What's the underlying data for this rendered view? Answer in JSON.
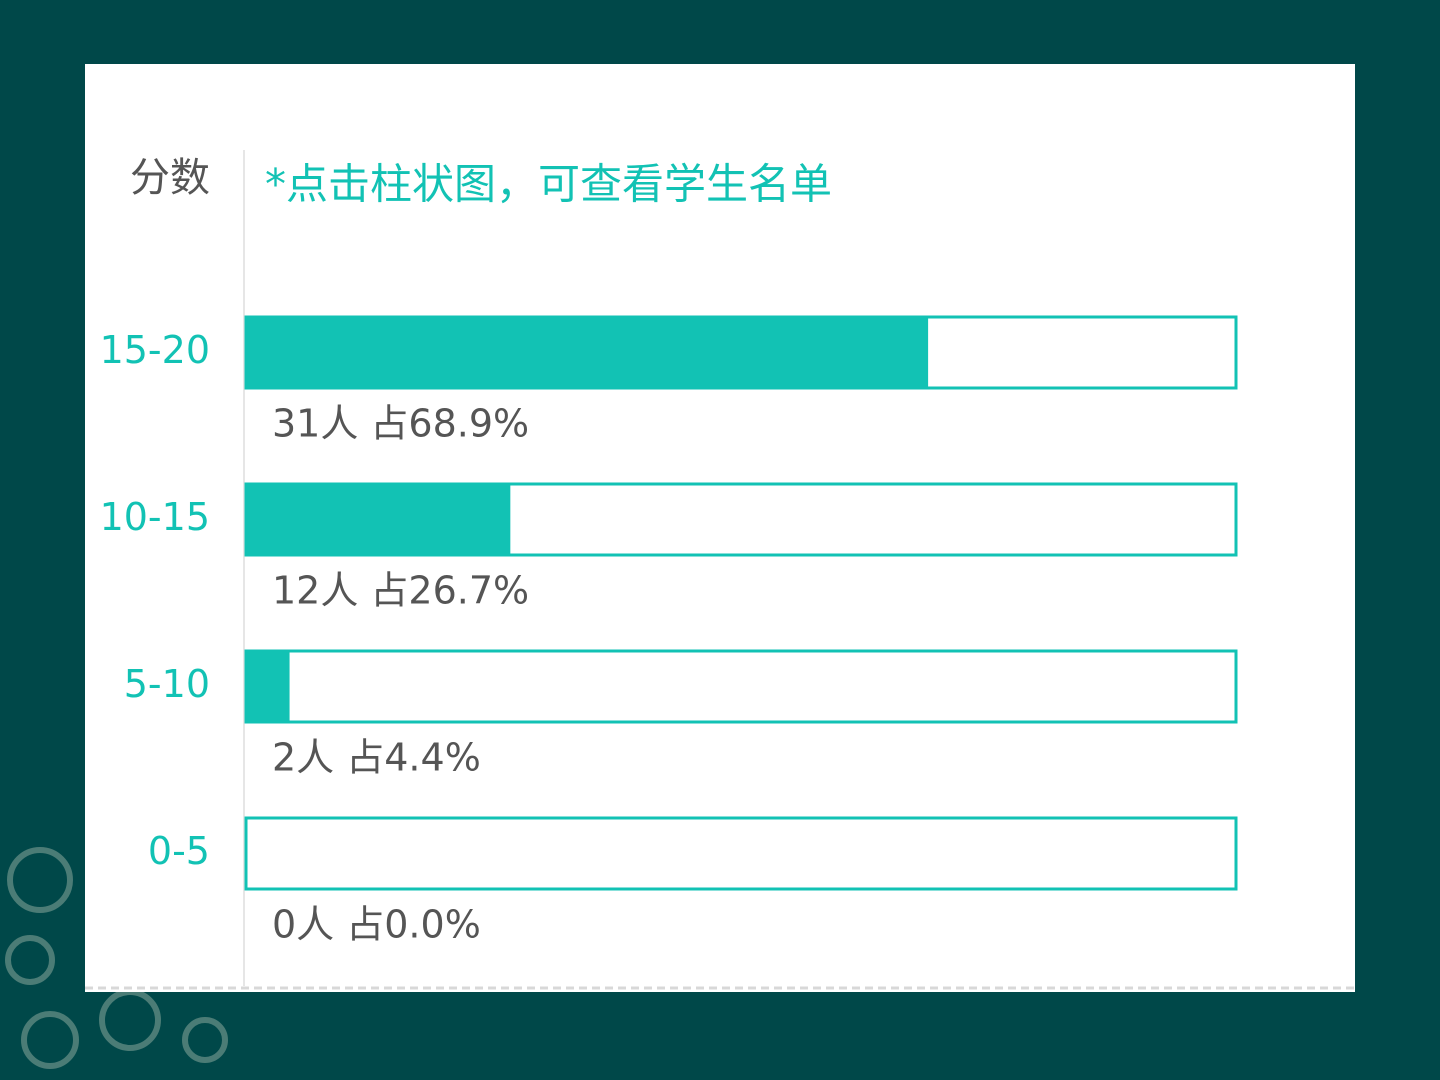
{
  "chart_data": {
    "type": "barh",
    "ylabel": "分数",
    "subtitle": "*点击柱状图，可查看学生名单",
    "categories": [
      "15-20",
      "10-15",
      "5-10",
      "0-5"
    ],
    "values": [
      68.9,
      26.7,
      4.4,
      0.0
    ],
    "value_labels": [
      "31人 占68.9%",
      "12人 占26.7%",
      "2人 占4.4%",
      "0人 占0.0%"
    ],
    "color": "#12c2b4",
    "xlim": [
      0,
      100
    ]
  }
}
